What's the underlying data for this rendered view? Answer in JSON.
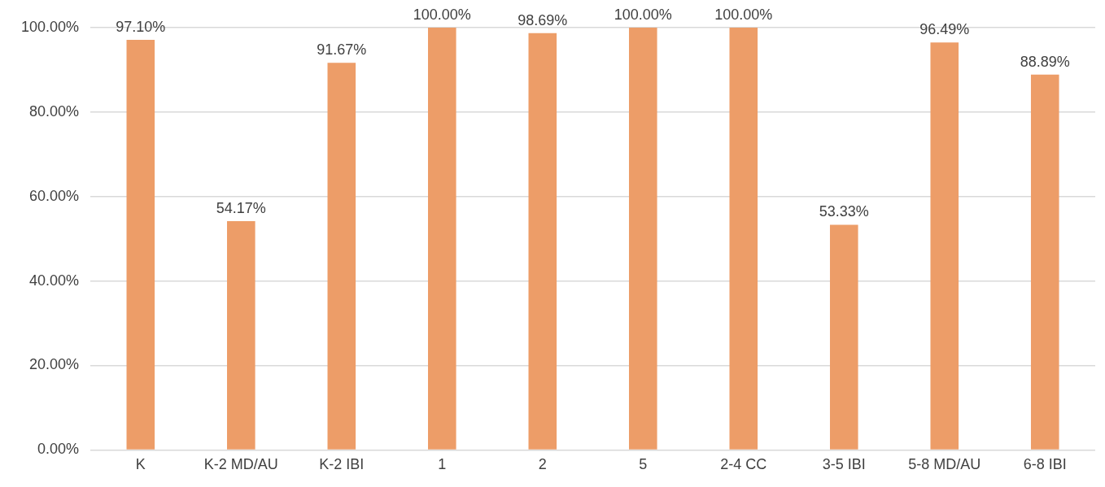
{
  "chart_data": {
    "type": "bar",
    "categories": [
      "K",
      "K-2 MD/AU",
      "K-2 IBI",
      "1",
      "2",
      "5",
      "2-4 CC",
      "3-5 IBI",
      "5-8 MD/AU",
      "6-8 IBI"
    ],
    "values": [
      97.1,
      54.17,
      91.67,
      100,
      98.69,
      100,
      100,
      53.33,
      96.49,
      88.89
    ],
    "value_labels": [
      "97.10%",
      "54.17%",
      "91.67%",
      "100.00%",
      "98.69%",
      "100.00%",
      "100.00%",
      "53.33%",
      "96.49%",
      "88.89%"
    ],
    "color": "#ed9d68",
    "ylim": [
      0,
      100
    ],
    "yticks": [
      {
        "value": 0,
        "label": "0.00%"
      },
      {
        "value": 20,
        "label": "20.00%"
      },
      {
        "value": 40,
        "label": "40.00%"
      },
      {
        "value": 60,
        "label": "60.00%"
      },
      {
        "value": 80,
        "label": "80.00%"
      },
      {
        "value": 100,
        "label": "100.00%"
      }
    ],
    "grid": "y",
    "legend": false
  }
}
